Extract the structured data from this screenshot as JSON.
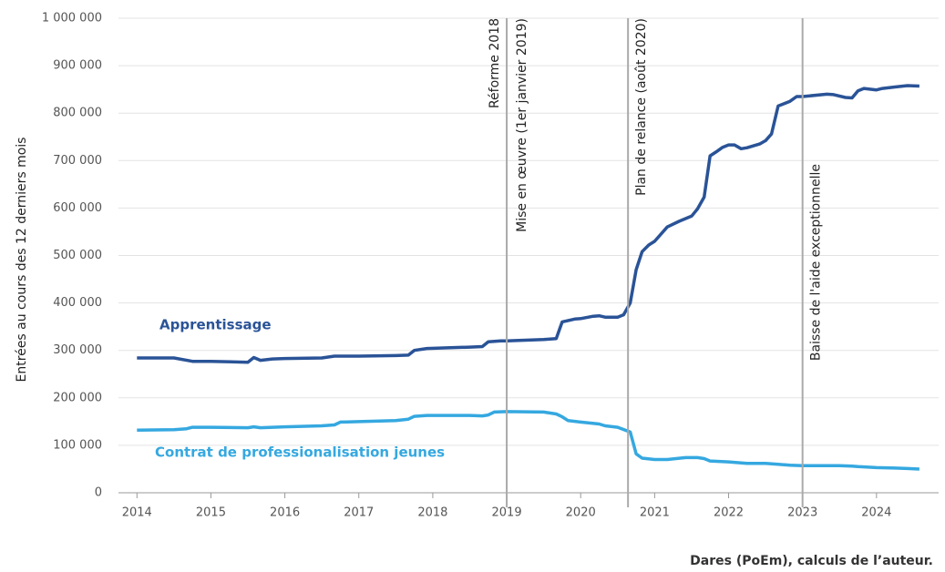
{
  "chart_data": {
    "type": "line",
    "y_label": "Entrées au cours des 12 derniers mois",
    "source": "Dares (PoEm), calculs de l’auteur.",
    "xlim": [
      2013.75,
      2024.84
    ],
    "xticks": [
      2014,
      2015,
      2016,
      2017,
      2018,
      2019,
      2020,
      2021,
      2022,
      2023,
      2024
    ],
    "ylim": [
      0,
      1000000
    ],
    "yticks": [
      0,
      {
        "value": 100000,
        "label": "100 000"
      },
      {
        "value": 200000,
        "label": "200 000"
      },
      {
        "value": 300000,
        "label": "300 000"
      },
      {
        "value": 400000,
        "label": "400 000"
      },
      {
        "value": 500000,
        "label": "500 000"
      },
      {
        "value": 600000,
        "label": "600 000"
      },
      {
        "value": 700000,
        "label": "700 000"
      },
      {
        "value": 800000,
        "label": "800 000"
      },
      {
        "value": 900000,
        "label": "900 000"
      },
      {
        "value": 1000000,
        "label": "1 000 000"
      }
    ],
    "grid": true,
    "annotations": [
      {
        "x": 2019.0,
        "texts": [
          "Réforme 2018",
          "Mise en œuvre (1er janvier 2019)"
        ]
      },
      {
        "x": 2020.64,
        "texts": [
          "Plan de relance (août 2020)"
        ]
      },
      {
        "x": 2023.0,
        "texts": [
          "Baisse de l'aide exceptionnelle"
        ]
      }
    ],
    "series": [
      {
        "name": "Apprentissage",
        "color": "#2a5397",
        "x": [
          2014.0,
          2014.5,
          2014.75,
          2015.0,
          2015.5,
          2015.58,
          2015.67,
          2015.83,
          2016.0,
          2016.5,
          2016.67,
          2017.0,
          2017.5,
          2017.67,
          2017.75,
          2017.92,
          2018.5,
          2018.67,
          2018.75,
          2018.92,
          2019.0,
          2019.5,
          2019.67,
          2019.75,
          2019.92,
          2020.0,
          2020.17,
          2020.25,
          2020.33,
          2020.5,
          2020.58,
          2020.67,
          2020.75,
          2020.83,
          2020.92,
          2021.0,
          2021.17,
          2021.33,
          2021.5,
          2021.58,
          2021.67,
          2021.75,
          2021.83,
          2021.92,
          2022.0,
          2022.08,
          2022.17,
          2022.25,
          2022.42,
          2022.5,
          2022.58,
          2022.67,
          2022.83,
          2022.92,
          2023.0,
          2023.33,
          2023.42,
          2023.58,
          2023.67,
          2023.75,
          2023.83,
          2024.0,
          2024.08,
          2024.25,
          2024.42,
          2024.58
        ],
        "values": [
          284000,
          284000,
          277000,
          277000,
          275000,
          285000,
          279000,
          282000,
          283000,
          284000,
          288000,
          288000,
          289000,
          290000,
          300000,
          304000,
          307000,
          308000,
          318000,
          320000,
          320000,
          323000,
          325000,
          360000,
          366000,
          367000,
          372000,
          373000,
          370000,
          370000,
          375000,
          400000,
          470000,
          508000,
          522000,
          530000,
          560000,
          572000,
          583000,
          598000,
          623000,
          710000,
          718000,
          728000,
          733000,
          733000,
          725000,
          727000,
          735000,
          742000,
          756000,
          815000,
          825000,
          835000,
          835000,
          840000,
          839000,
          833000,
          832000,
          847000,
          852000,
          849000,
          852000,
          855000,
          858000,
          857000
        ]
      },
      {
        "name": "Contrat de professionalisation jeunes",
        "color": "#35a8e0",
        "x": [
          2014.0,
          2014.5,
          2014.67,
          2014.75,
          2015.0,
          2015.5,
          2015.58,
          2015.67,
          2016.0,
          2016.5,
          2016.67,
          2016.75,
          2017.0,
          2017.5,
          2017.67,
          2017.75,
          2017.92,
          2018.5,
          2018.67,
          2018.75,
          2018.83,
          2019.0,
          2019.5,
          2019.67,
          2019.75,
          2019.83,
          2020.0,
          2020.25,
          2020.33,
          2020.5,
          2020.67,
          2020.75,
          2020.83,
          2021.0,
          2021.17,
          2021.42,
          2021.58,
          2021.67,
          2021.75,
          2022.0,
          2022.25,
          2022.5,
          2022.67,
          2022.83,
          2023.0,
          2023.5,
          2023.67,
          2023.75,
          2024.0,
          2024.25,
          2024.42,
          2024.58
        ],
        "values": [
          132000,
          133000,
          135000,
          138000,
          138000,
          137000,
          139000,
          137000,
          139000,
          141000,
          143000,
          149000,
          150000,
          152000,
          155000,
          161000,
          163000,
          163000,
          162000,
          164000,
          170000,
          171000,
          170000,
          166000,
          160000,
          152000,
          149000,
          145000,
          141000,
          138000,
          128000,
          82000,
          73000,
          70000,
          70000,
          74000,
          74000,
          72000,
          67000,
          65000,
          62000,
          62000,
          60000,
          58000,
          57000,
          57000,
          56000,
          55000,
          53000,
          52000,
          51000,
          50000
        ]
      }
    ]
  }
}
